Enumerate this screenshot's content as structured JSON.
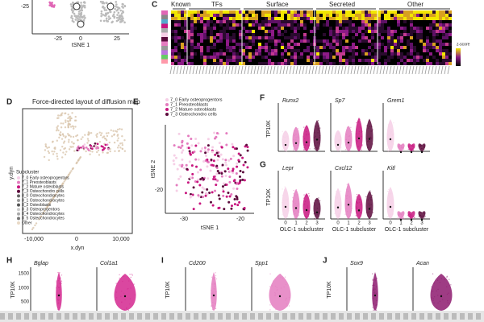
{
  "top_tsne": {
    "y_tick": "-25",
    "x_ticks": [
      "-25",
      "0",
      "25"
    ],
    "x_label": "tSNE 1"
  },
  "panel_c": {
    "label": "C",
    "groups": [
      "Known",
      "TFs",
      "Surface",
      "Secreted",
      "Other"
    ],
    "legend_title": "z-score"
  },
  "panel_d": {
    "label": "D",
    "title": "Force-directed layout of diffusion map",
    "y_label": "y.dyn",
    "x_label": "x.dyn",
    "x_ticks": [
      "-10,000",
      "0",
      "10,000"
    ],
    "legend_title": "Subcluster",
    "legend": [
      "7_0 Early osteoprogentors",
      "7_1 Preosteoblasts",
      "7_2 Mature osteoblasts",
      "7_3 Osteochondro cells",
      "8_0 Osteochondrocytes",
      "8_1 Osteochondrocytes",
      "8_2 Osteoblasts",
      "8_3 Osteoprogentors",
      "8_4 Osteochondrocytes",
      "8_5 Osteochondrocytes",
      "Other"
    ]
  },
  "panel_e": {
    "label": "E",
    "legend": [
      "7_0 Early osteoprogentors",
      "7_1 Preosteoblasts",
      "7_2 Mature osteoblasts",
      "7_3 Osteochondro cells"
    ],
    "y_ticks": [
      "-20"
    ],
    "x_ticks": [
      "-30",
      "-20"
    ],
    "y_label": "tSNE 2",
    "x_label": "tSNE 1"
  },
  "panel_f": {
    "label": "F",
    "y_label": "TP10K",
    "genes": [
      "Runx2",
      "Sp7",
      "Grem1"
    ]
  },
  "panel_g": {
    "label": "G",
    "y_label": "TP10K",
    "genes": [
      "Lepr",
      "Cxcl12",
      "Kitl"
    ],
    "x_ticks": [
      "0",
      "1",
      "2",
      "3"
    ],
    "x_label": "OLC-1 subcluster"
  },
  "panel_h": {
    "label": "H",
    "genes": [
      "Bglap",
      "Col1a1"
    ],
    "y_label": "TP10K",
    "y_ticks": [
      "1500",
      "1000",
      "500"
    ]
  },
  "panel_i": {
    "label": "I",
    "genes": [
      "Cd200",
      "Spp1"
    ],
    "y_label": "TP10K"
  },
  "panel_j": {
    "label": "J",
    "genes": [
      "Sox9",
      "Acan"
    ],
    "y_label": "TP10K"
  }
}
